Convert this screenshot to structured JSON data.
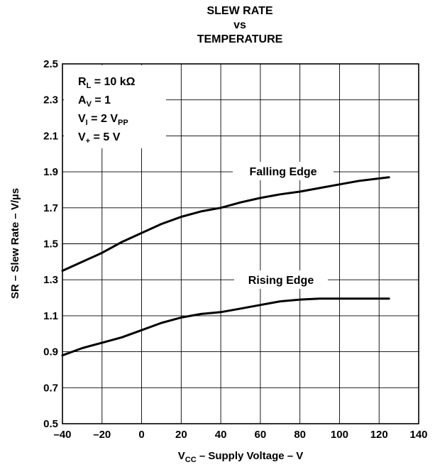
{
  "chart_data": {
    "type": "line",
    "title_lines": [
      "SLEW RATE",
      "vs",
      "TEMPERATURE"
    ],
    "xlabel": {
      "main": "V",
      "sub": "CC",
      "rest": " – Supply Voltage – V"
    },
    "ylabel": "SR – Slew Rate – V/µs",
    "xlim": [
      -40,
      140
    ],
    "ylim": [
      0.5,
      2.5
    ],
    "x_ticks": [
      -40,
      -20,
      0,
      20,
      40,
      60,
      80,
      100,
      120,
      140
    ],
    "x_tick_labels": [
      "–40",
      "–20",
      "0",
      "20",
      "40",
      "60",
      "80",
      "100",
      "120",
      "140"
    ],
    "y_ticks": [
      0.5,
      0.7,
      0.9,
      1.1,
      1.3,
      1.5,
      1.7,
      1.9,
      2.1,
      2.3,
      2.5
    ],
    "y_tick_labels": [
      "0.5",
      "0.7",
      "0.9",
      "1.1",
      "1.3",
      "1.5",
      "1.7",
      "1.9",
      "2.1",
      "2.3",
      "2.5"
    ],
    "grid": true,
    "conditions": [
      {
        "main": "R",
        "sub": "L",
        "rest": " = 10 kΩ"
      },
      {
        "main": "A",
        "sub": "V",
        "rest": " = 1"
      },
      {
        "main": "V",
        "sub": "I",
        "rest": " = 2 V",
        "sub2": "PP"
      },
      {
        "main": "V",
        "sub": "+",
        "rest": "  = 5 V"
      }
    ],
    "series": [
      {
        "name": "Falling Edge",
        "x": [
          -40,
          -30,
          -20,
          -10,
          0,
          10,
          20,
          30,
          40,
          50,
          60,
          70,
          80,
          90,
          100,
          110,
          125
        ],
        "y": [
          1.35,
          1.4,
          1.45,
          1.51,
          1.56,
          1.61,
          1.65,
          1.68,
          1.7,
          1.73,
          1.755,
          1.775,
          1.79,
          1.81,
          1.83,
          1.85,
          1.87
        ]
      },
      {
        "name": "Rising Edge",
        "x": [
          -40,
          -30,
          -20,
          -10,
          0,
          10,
          20,
          30,
          40,
          50,
          60,
          70,
          80,
          90,
          100,
          110,
          125
        ],
        "y": [
          0.88,
          0.92,
          0.95,
          0.98,
          1.02,
          1.06,
          1.09,
          1.11,
          1.12,
          1.14,
          1.16,
          1.18,
          1.19,
          1.195,
          1.195,
          1.195,
          1.195
        ]
      }
    ]
  }
}
